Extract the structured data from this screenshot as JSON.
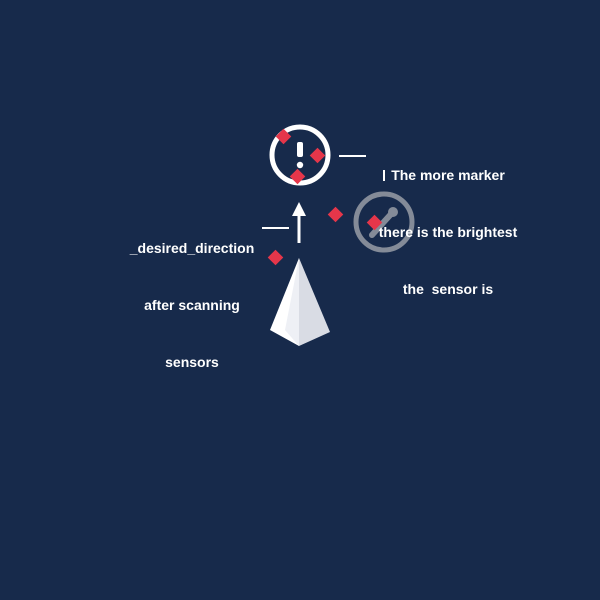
{
  "annotations": {
    "brightness_note": {
      "lines": [
        "The more marker",
        "there is the brightest",
        "the  sensor is"
      ]
    },
    "direction_note": {
      "lines": [
        "_desired_direction",
        "after scanning",
        "sensors"
      ]
    }
  },
  "sensors": [
    {
      "name": "bright-sensor",
      "icon": "exclamation-icon",
      "marker_count": 3
    },
    {
      "name": "dim-sensor",
      "icon": "wrench-icon",
      "marker_count": 1
    }
  ],
  "colors": {
    "background": "#172a4b",
    "marker": "#e5364a",
    "sensor_bright": "#ffffff",
    "sensor_dim": "#8a919d",
    "agent_light": "#ffffff",
    "agent_shade": "#d9dce4"
  }
}
